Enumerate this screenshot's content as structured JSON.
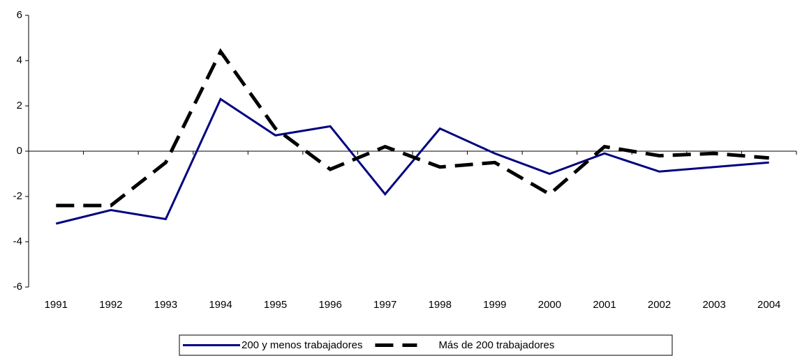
{
  "chart_data": {
    "type": "line",
    "categories": [
      "1991",
      "1992",
      "1993",
      "1994",
      "1995",
      "1996",
      "1997",
      "1998",
      "1999",
      "2000",
      "2001",
      "2002",
      "2003",
      "2004"
    ],
    "series": [
      {
        "name": "200 y menos trabajadores",
        "color": "#000080",
        "dashed": false,
        "values": [
          -3.2,
          -2.6,
          -3.0,
          2.3,
          0.7,
          1.1,
          -1.9,
          1.0,
          -0.1,
          -1.0,
          -0.1,
          -0.9,
          -0.7,
          -0.5
        ]
      },
      {
        "name": "Más de 200 trabajadores",
        "color": "#000000",
        "dashed": true,
        "values": [
          -2.4,
          -2.4,
          -0.5,
          4.4,
          1.0,
          -0.8,
          0.2,
          -0.7,
          -0.5,
          -1.9,
          0.2,
          -0.2,
          -0.1,
          -0.3
        ]
      }
    ],
    "ylim": [
      -6,
      6
    ],
    "yticks": [
      -6,
      -4,
      -2,
      0,
      2,
      4,
      6
    ],
    "legend": "bottom"
  }
}
